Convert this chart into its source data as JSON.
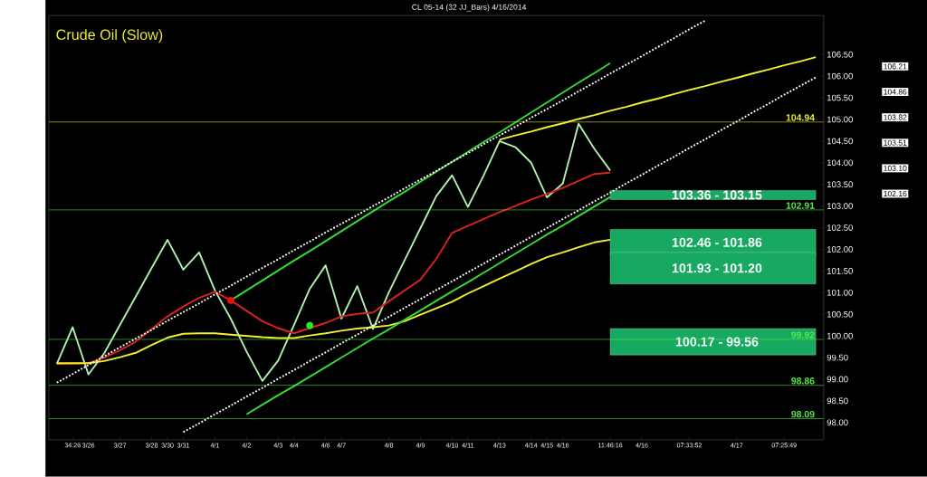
{
  "chart_data": {
    "type": "line",
    "title": "Crude Oil (Slow)",
    "subtitle": "CL 05-14 (32 JJ_Bars)  4/16/2014",
    "categories": [
      null,
      "34:26",
      "3/26",
      null,
      "3/27",
      null,
      "3/28",
      "3/30",
      "3/31",
      null,
      "4/1",
      null,
      "4/2",
      null,
      "4/3",
      "4/4",
      null,
      "4/6",
      "4/7",
      null,
      null,
      "4/8",
      null,
      "4/9",
      null,
      "4/10",
      "4/11",
      null,
      "4/13",
      null,
      "4/14",
      "4/15",
      "4/16",
      null,
      null,
      "11:46:16",
      null,
      "4/16",
      null,
      null,
      "07:33:52",
      null,
      null,
      "4/17",
      null,
      null,
      "07:25:49",
      null,
      null
    ],
    "ylim": [
      97.6,
      107.4
    ],
    "yticks": [
      {
        "value": 98.0,
        "label": "98.00"
      },
      {
        "value": 98.5,
        "label": "98.50"
      },
      {
        "value": 99.0,
        "label": "99.00"
      },
      {
        "value": 99.5,
        "label": "99.50"
      },
      {
        "value": 100.0,
        "label": "100.00"
      },
      {
        "value": 100.5,
        "label": "100.50"
      },
      {
        "value": 101.0,
        "label": "101.00"
      },
      {
        "value": 101.5,
        "label": "101.50"
      },
      {
        "value": 102.0,
        "label": "102.00"
      },
      {
        "value": 102.5,
        "label": "102.50"
      },
      {
        "value": 103.0,
        "label": "103.00"
      },
      {
        "value": 103.5,
        "label": "103.50"
      },
      {
        "value": 104.0,
        "label": "104.00"
      },
      {
        "value": 104.5,
        "label": "104.50"
      },
      {
        "value": 105.0,
        "label": "105.00"
      },
      {
        "value": 105.5,
        "label": "105.50"
      },
      {
        "value": 106.0,
        "label": "106.00"
      },
      {
        "value": 106.5,
        "label": "106.50"
      }
    ],
    "bands": [
      {
        "axis": "y",
        "from": 103.15,
        "to": 103.36,
        "label": "103.36 - 103.15",
        "color": "#17a862"
      },
      {
        "axis": "y",
        "from": 101.86,
        "to": 102.46,
        "label": "102.46 - 101.86",
        "color": "#17a862"
      },
      {
        "axis": "y",
        "from": 101.2,
        "to": 101.93,
        "label": "101.93 - 101.20",
        "color": "#17a862"
      },
      {
        "axis": "y",
        "from": 99.56,
        "to": 100.17,
        "label": "100.17 - 99.56",
        "color": "#17a862"
      }
    ],
    "ref_lines": [
      {
        "axis": "y",
        "value": 104.94,
        "label": "104.94",
        "color": "#f0f030"
      },
      {
        "axis": "y",
        "value": 102.91,
        "label": "102.91",
        "color": "#55ee44"
      },
      {
        "axis": "y",
        "value": 99.92,
        "label": "99.92",
        "color": "#55ee44"
      },
      {
        "axis": "y",
        "value": 98.86,
        "label": "98.86",
        "color": "#55ee44"
      },
      {
        "axis": "y",
        "value": 98.09,
        "label": "98.09",
        "color": "#55ee44"
      }
    ],
    "annotations": [
      "106.21",
      "104.86",
      "103.82",
      "103.51",
      "103.10",
      "102.16"
    ],
    "series": [
      {
        "color": "#b0f0b0",
        "marker": "none",
        "line_style": "solid",
        "values": [
          99.35,
          100.2,
          99.11,
          99.6,
          100.26,
          100.91,
          101.57,
          102.22,
          101.53,
          101.93,
          101.05,
          100.4,
          99.64,
          98.96,
          99.43,
          100.25,
          101.09,
          101.63,
          100.4,
          101.15,
          100.16,
          101.01,
          101.75,
          102.49,
          103.23,
          103.71,
          102.98,
          103.71,
          104.5,
          104.36,
          104.0,
          103.2,
          103.52,
          104.9,
          104.32,
          103.82,
          null,
          null,
          null,
          null,
          null,
          null,
          null,
          null,
          null,
          null,
          null,
          null,
          null
        ]
      },
      {
        "color": "#dd2020",
        "marker": "none",
        "line_style": "solid",
        "values": [
          99.35,
          99.36,
          99.37,
          99.5,
          99.67,
          99.87,
          100.16,
          100.45,
          100.68,
          100.88,
          101.02,
          100.82,
          100.58,
          100.34,
          100.18,
          100.06,
          100.18,
          100.3,
          100.45,
          100.51,
          100.54,
          100.8,
          101.05,
          101.3,
          101.78,
          102.38,
          102.54,
          102.7,
          102.86,
          103.0,
          103.15,
          103.28,
          103.42,
          103.58,
          103.74,
          103.77,
          null,
          null,
          null,
          null,
          null,
          null,
          null,
          null,
          null,
          null,
          null,
          null,
          null
        ]
      },
      {
        "color": "#f0f030",
        "marker": "none",
        "line_style": "solid",
        "values": [
          99.37,
          99.37,
          99.37,
          99.42,
          99.51,
          99.61,
          99.79,
          99.96,
          100.05,
          100.06,
          100.06,
          100.03,
          100.0,
          99.97,
          99.95,
          99.95,
          100.01,
          100.06,
          100.12,
          100.17,
          100.2,
          100.24,
          100.34,
          100.49,
          100.64,
          100.79,
          100.98,
          101.15,
          101.32,
          101.49,
          101.66,
          101.82,
          101.93,
          102.05,
          102.16,
          102.22,
          null,
          null,
          null,
          null,
          null,
          null,
          null,
          null,
          null,
          null,
          null,
          null,
          null
        ]
      },
      {
        "color": "#33dd33",
        "marker": "none",
        "line_style": "solid",
        "values": [
          null,
          null,
          null,
          null,
          null,
          null,
          null,
          null,
          null,
          null,
          null,
          100.82,
          101.05,
          101.28,
          101.51,
          101.74,
          101.96,
          102.19,
          102.42,
          102.65,
          102.88,
          103.11,
          103.33,
          103.56,
          103.79,
          104.02,
          104.25,
          104.48,
          104.7,
          104.93,
          105.16,
          105.39,
          105.62,
          105.85,
          106.07,
          106.3,
          null,
          null,
          null,
          null,
          null,
          null,
          null,
          null,
          null,
          null,
          null,
          null,
          null
        ]
      },
      {
        "color": "#33dd33",
        "marker": "none",
        "line_style": "solid",
        "values": [
          null,
          null,
          null,
          null,
          null,
          null,
          null,
          null,
          null,
          null,
          null,
          null,
          98.19,
          98.41,
          98.63,
          98.84,
          99.06,
          99.28,
          99.5,
          99.72,
          99.94,
          100.15,
          100.37,
          100.59,
          100.81,
          101.03,
          101.24,
          101.46,
          101.68,
          101.9,
          102.12,
          102.34,
          102.55,
          102.77,
          102.99,
          103.21,
          null,
          null,
          null,
          null,
          null,
          null,
          null,
          null,
          null,
          null,
          null,
          null,
          null
        ]
      },
      {
        "color": "#ffffff",
        "marker": "none",
        "line_style": "dotted",
        "values": [
          98.92,
          99.12,
          99.33,
          99.53,
          99.74,
          99.94,
          100.14,
          100.35,
          100.55,
          100.75,
          100.96,
          101.16,
          101.37,
          101.57,
          101.77,
          101.98,
          102.18,
          102.39,
          102.59,
          102.79,
          103.0,
          103.2,
          103.41,
          103.61,
          103.81,
          104.02,
          104.22,
          104.43,
          104.63,
          104.83,
          105.04,
          105.24,
          105.44,
          105.65,
          105.85,
          106.06,
          106.26,
          106.46,
          106.67,
          106.87,
          107.08,
          107.28,
          null,
          null,
          null,
          null,
          null,
          null,
          null
        ]
      },
      {
        "color": "#ffffff",
        "marker": "none",
        "line_style": "dotted",
        "values": [
          null,
          null,
          null,
          null,
          null,
          null,
          null,
          null,
          97.78,
          97.98,
          98.19,
          98.39,
          98.6,
          98.8,
          99.01,
          99.21,
          99.42,
          99.62,
          99.83,
          100.03,
          100.24,
          100.44,
          100.65,
          100.85,
          101.06,
          101.26,
          101.47,
          101.67,
          101.88,
          102.08,
          102.29,
          102.49,
          102.7,
          102.9,
          103.11,
          103.31,
          103.52,
          103.72,
          103.93,
          104.13,
          104.34,
          104.54,
          104.75,
          104.95,
          105.16,
          105.36,
          105.57,
          105.77,
          105.97
        ]
      },
      {
        "color": "#f0f030",
        "marker": "none",
        "line_style": "solid",
        "values": [
          null,
          null,
          null,
          null,
          null,
          null,
          null,
          null,
          null,
          null,
          null,
          null,
          null,
          null,
          null,
          null,
          null,
          null,
          null,
          null,
          null,
          null,
          null,
          null,
          null,
          null,
          null,
          null,
          104.53,
          104.63,
          104.72,
          104.82,
          104.91,
          105.01,
          105.1,
          105.2,
          105.29,
          105.39,
          105.48,
          105.58,
          105.68,
          105.77,
          105.87,
          105.96,
          106.06,
          106.15,
          106.25,
          106.34,
          106.44
        ]
      },
      {
        "type": "scatter",
        "color": "#ee1111",
        "marker": "circle",
        "values": [
          null,
          null,
          null,
          null,
          null,
          null,
          null,
          null,
          null,
          null,
          null,
          100.82,
          null,
          null,
          null,
          null,
          null,
          null,
          null,
          null,
          null,
          null,
          null,
          null,
          null,
          null,
          null,
          null,
          null,
          null,
          null,
          null,
          null,
          null,
          null,
          null,
          null,
          null,
          null,
          null,
          null,
          null,
          null,
          null,
          null,
          null,
          null,
          null,
          null
        ]
      },
      {
        "type": "scatter",
        "color": "#22ee22",
        "marker": "circle",
        "values": [
          null,
          null,
          null,
          null,
          null,
          null,
          null,
          null,
          null,
          null,
          null,
          null,
          null,
          null,
          null,
          null,
          100.24,
          null,
          null,
          null,
          null,
          null,
          null,
          null,
          null,
          null,
          null,
          null,
          null,
          null,
          null,
          null,
          null,
          null,
          null,
          null,
          null,
          null,
          null,
          null,
          null,
          null,
          null,
          null,
          null,
          null,
          null,
          null,
          null
        ]
      }
    ]
  }
}
